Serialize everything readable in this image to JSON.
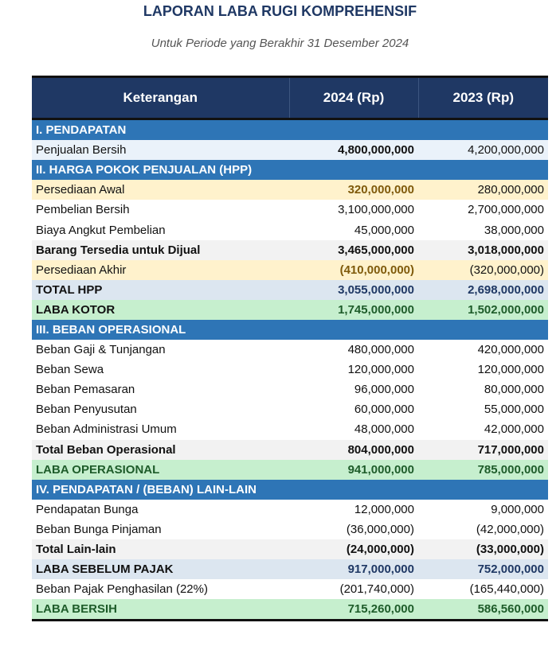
{
  "title": "LAPORAN LABA RUGI KOMPREHENSIF",
  "subtitle": "Untuk Periode yang Berakhir 31 Desember 2024",
  "headers": [
    "Keterangan",
    "2024 (Rp)",
    "2023 (Rp)"
  ],
  "rows": [
    {
      "type": "section",
      "label": "I. PENDAPATAN",
      "v2024": "",
      "v2023": ""
    },
    {
      "type": "light",
      "label": "Penjualan Bersih",
      "v2024": "4,800,000,000",
      "v2023": "4,200,000,000"
    },
    {
      "type": "section",
      "label": "II. HARGA POKOK PENJUALAN (HPP)",
      "v2024": "",
      "v2023": ""
    },
    {
      "type": "cream",
      "label": "Persediaan Awal",
      "v2024": "320,000,000",
      "v2023": "280,000,000"
    },
    {
      "type": "normal",
      "label": "Pembelian Bersih",
      "v2024": "3,100,000,000",
      "v2023": "2,700,000,000"
    },
    {
      "type": "normal",
      "label": "Biaya Angkut Pembelian",
      "v2024": "45,000,000",
      "v2023": "38,000,000"
    },
    {
      "type": "gray",
      "label": "Barang Tersedia untuk Dijual",
      "v2024": "3,465,000,000",
      "v2023": "3,018,000,000"
    },
    {
      "type": "cream",
      "label": "Persediaan Akhir",
      "v2024": "(410,000,000)",
      "v2023": "(320,000,000)"
    },
    {
      "type": "blue",
      "label": "TOTAL HPP",
      "v2024": "3,055,000,000",
      "v2023": "2,698,000,000"
    },
    {
      "type": "green-black",
      "label": "LABA KOTOR",
      "v2024": "1,745,000,000",
      "v2023": "1,502,000,000"
    },
    {
      "type": "section",
      "label": "III. BEBAN OPERASIONAL",
      "v2024": "",
      "v2023": ""
    },
    {
      "type": "normal",
      "label": "Beban Gaji & Tunjangan",
      "v2024": "480,000,000",
      "v2023": "420,000,000"
    },
    {
      "type": "normal",
      "label": "Beban Sewa",
      "v2024": "120,000,000",
      "v2023": "120,000,000"
    },
    {
      "type": "normal",
      "label": "Beban Pemasaran",
      "v2024": "96,000,000",
      "v2023": "80,000,000"
    },
    {
      "type": "normal",
      "label": "Beban Penyusutan",
      "v2024": "60,000,000",
      "v2023": "55,000,000"
    },
    {
      "type": "normal",
      "label": "Beban Administrasi Umum",
      "v2024": "48,000,000",
      "v2023": "42,000,000"
    },
    {
      "type": "gray",
      "label": "Total Beban Operasional",
      "v2024": "804,000,000",
      "v2023": "717,000,000"
    },
    {
      "type": "green",
      "label": "LABA OPERASIONAL",
      "v2024": "941,000,000",
      "v2023": "785,000,000"
    },
    {
      "type": "section",
      "label": "IV. PENDAPATAN / (BEBAN) LAIN-LAIN",
      "v2024": "",
      "v2023": ""
    },
    {
      "type": "normal",
      "label": "Pendapatan Bunga",
      "v2024": "12,000,000",
      "v2023": "9,000,000"
    },
    {
      "type": "normal",
      "label": "Beban Bunga Pinjaman",
      "v2024": "(36,000,000)",
      "v2023": "(42,000,000)"
    },
    {
      "type": "gray",
      "label": "Total Lain-lain",
      "v2024": "(24,000,000)",
      "v2023": "(33,000,000)"
    },
    {
      "type": "blue",
      "label": "LABA SEBELUM PAJAK",
      "v2024": "917,000,000",
      "v2023": "752,000,000"
    },
    {
      "type": "normal",
      "label": "Beban Pajak Penghasilan (22%)",
      "v2024": "(201,740,000)",
      "v2023": "(165,440,000)"
    },
    {
      "type": "green",
      "label": "LABA BERSIH",
      "v2024": "715,260,000",
      "v2023": "586,560,000"
    }
  ]
}
